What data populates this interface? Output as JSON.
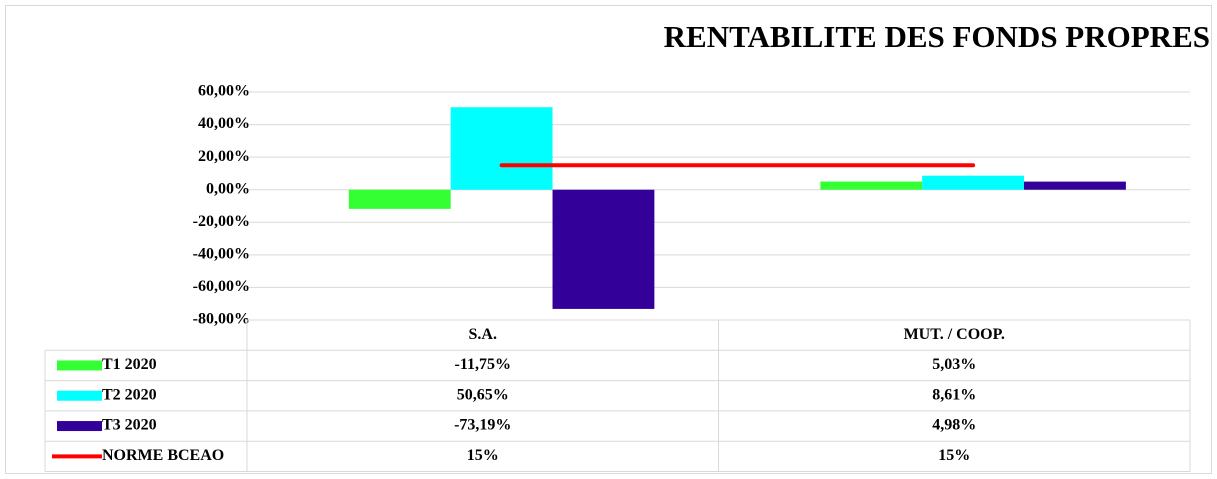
{
  "chart_data": {
    "type": "bar",
    "title": "RENTABILITE DES FONDS PROPRES",
    "categories": [
      "S.A.",
      "MUT. / COOP."
    ],
    "series": [
      {
        "name": "T1 2020",
        "color": "#33ff33",
        "values": [
          -11.75,
          5.03
        ],
        "value_labels": [
          "-11,75%",
          "5,03%"
        ]
      },
      {
        "name": "T2 2020",
        "color": "#00ffff",
        "values": [
          50.65,
          8.61
        ],
        "value_labels": [
          "50,65%",
          "8,61%"
        ]
      },
      {
        "name": "T3 2020",
        "color": "#330099",
        "values": [
          -73.19,
          4.98
        ],
        "value_labels": [
          "-73,19%",
          "4,98%"
        ]
      },
      {
        "name": "NORME BCEAO",
        "color": "#ff0000",
        "type": "line",
        "values": [
          15,
          15
        ],
        "value_labels": [
          "15%",
          "15%"
        ]
      }
    ],
    "ylim": [
      -80,
      60
    ],
    "yticks": [
      {
        "value": -80,
        "label": "-80,00%"
      },
      {
        "value": -60,
        "label": "-60,00%"
      },
      {
        "value": -40,
        "label": "-40,00%"
      },
      {
        "value": -20,
        "label": "-20,00%"
      },
      {
        "value": 0,
        "label": "0,00%"
      },
      {
        "value": 20,
        "label": "20,00%"
      },
      {
        "value": 40,
        "label": "40,00%"
      },
      {
        "value": 60,
        "label": "60,00%"
      }
    ],
    "grid": true
  }
}
